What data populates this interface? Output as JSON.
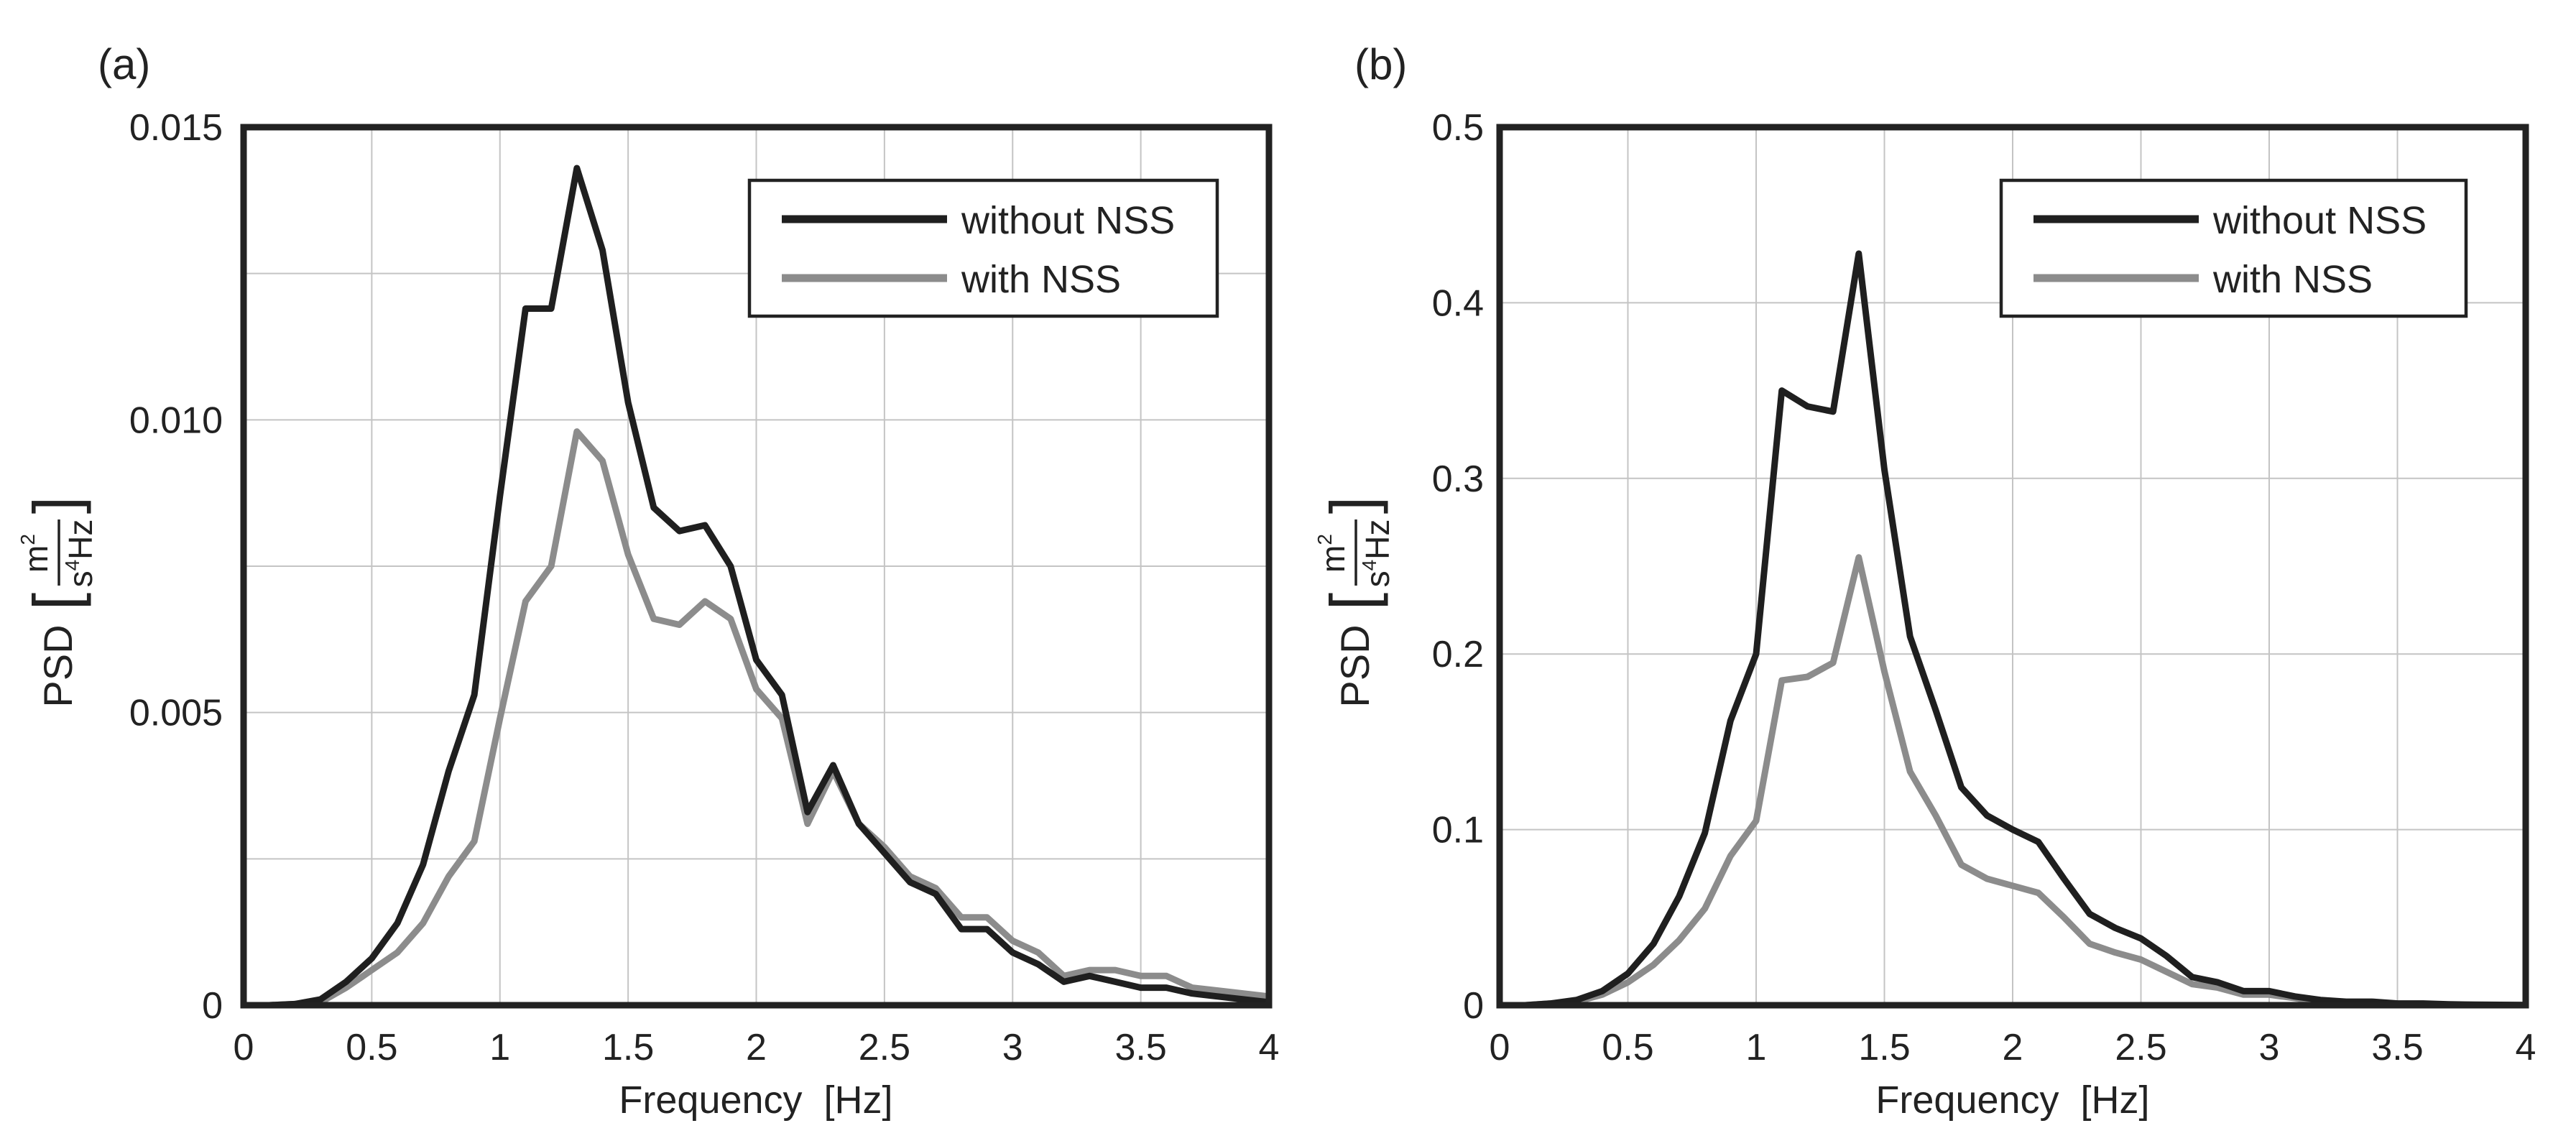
{
  "colors": {
    "without_nss": "#1f1f1f",
    "with_nss": "#8c8c8c",
    "grid": "#c4c4c4",
    "frame": "#222222",
    "background": "#ffffff"
  },
  "chart_data": [
    {
      "type": "line",
      "panel_label": "(a)",
      "title": "",
      "xlabel": "Frequency  [Hz]",
      "ylabel_prefix": "PSD",
      "unit_numerator": "m",
      "unit_numerator_exp": "2",
      "unit_denominator": "s",
      "unit_denominator_exp": "4",
      "unit_denominator_tail": "Hz",
      "xlim": [
        0,
        4
      ],
      "ylim": [
        0,
        0.015
      ],
      "xticks": [
        0,
        0.5,
        1,
        1.5,
        2,
        2.5,
        3,
        3.5,
        4
      ],
      "xtick_labels": [
        "0",
        "0.5",
        "1",
        "1.5",
        "2",
        "2.5",
        "3",
        "3.5",
        "4"
      ],
      "yticks": [
        0,
        0.005,
        0.01,
        0.015
      ],
      "ytick_labels": [
        "0",
        "0.005",
        "0.010",
        "0.015"
      ],
      "x_grid_step": 0.5,
      "y_grid_step": 0.0025,
      "grid": true,
      "legend_position": "top-right",
      "x": [
        0,
        0.1,
        0.2,
        0.3,
        0.4,
        0.5,
        0.6,
        0.7,
        0.8,
        0.9,
        1.0,
        1.1,
        1.2,
        1.3,
        1.4,
        1.5,
        1.6,
        1.7,
        1.8,
        1.9,
        2.0,
        2.1,
        2.2,
        2.3,
        2.4,
        2.5,
        2.6,
        2.7,
        2.8,
        2.9,
        3.0,
        3.1,
        3.2,
        3.3,
        3.4,
        3.5,
        3.6,
        3.7,
        3.8,
        3.9,
        4.0
      ],
      "series": [
        {
          "name": "without NSS",
          "values": [
            0.0,
            0.0,
            2e-05,
            0.0001,
            0.0004,
            0.0008,
            0.0014,
            0.0024,
            0.004,
            0.0053,
            0.0087,
            0.0119,
            0.0119,
            0.0143,
            0.0129,
            0.0103,
            0.0085,
            0.0081,
            0.0082,
            0.0075,
            0.0059,
            0.0053,
            0.0033,
            0.0041,
            0.0031,
            0.0026,
            0.0021,
            0.0019,
            0.0013,
            0.0013,
            0.0009,
            0.0007,
            0.0004,
            0.0005,
            0.0004,
            0.0003,
            0.0003,
            0.0002,
            0.00015,
            0.0001,
            5e-05
          ]
        },
        {
          "name": "with NSS",
          "values": [
            0.0,
            0.0,
            2e-05,
            5e-05,
            0.0003,
            0.0006,
            0.0009,
            0.0014,
            0.0022,
            0.0028,
            0.0049,
            0.0069,
            0.0075,
            0.0098,
            0.0093,
            0.0077,
            0.0066,
            0.0065,
            0.0069,
            0.0066,
            0.0054,
            0.0049,
            0.0031,
            0.004,
            0.0031,
            0.0027,
            0.0022,
            0.002,
            0.0015,
            0.0015,
            0.0011,
            0.0009,
            0.0005,
            0.0006,
            0.0006,
            0.0005,
            0.0005,
            0.0003,
            0.00025,
            0.0002,
            0.00015
          ]
        }
      ]
    },
    {
      "type": "line",
      "panel_label": "(b)",
      "title": "",
      "xlabel": "Frequency  [Hz]",
      "ylabel_prefix": "PSD",
      "unit_numerator": "m",
      "unit_numerator_exp": "2",
      "unit_denominator": "s",
      "unit_denominator_exp": "4",
      "unit_denominator_tail": "Hz",
      "xlim": [
        0,
        4
      ],
      "ylim": [
        0,
        0.5
      ],
      "xticks": [
        0,
        0.5,
        1,
        1.5,
        2,
        2.5,
        3,
        3.5,
        4
      ],
      "xtick_labels": [
        "0",
        "0.5",
        "1",
        "1.5",
        "2",
        "2.5",
        "3",
        "3.5",
        "4"
      ],
      "yticks": [
        0,
        0.1,
        0.2,
        0.3,
        0.4,
        0.5
      ],
      "ytick_labels": [
        "0",
        "0.1",
        "0.2",
        "0.3",
        "0.4",
        "0.5"
      ],
      "x_grid_step": 0.5,
      "y_grid_step": 0.1,
      "grid": true,
      "legend_position": "top-right",
      "x": [
        0,
        0.1,
        0.2,
        0.3,
        0.4,
        0.5,
        0.6,
        0.7,
        0.8,
        0.9,
        1.0,
        1.1,
        1.2,
        1.3,
        1.4,
        1.5,
        1.6,
        1.7,
        1.8,
        1.9,
        2.0,
        2.1,
        2.2,
        2.3,
        2.4,
        2.5,
        2.6,
        2.7,
        2.8,
        2.9,
        3.0,
        3.1,
        3.2,
        3.3,
        3.4,
        3.5,
        3.6,
        3.7,
        3.8,
        3.9,
        4.0
      ],
      "series": [
        {
          "name": "without NSS",
          "values": [
            0.0,
            0.0,
            0.001,
            0.003,
            0.008,
            0.018,
            0.035,
            0.062,
            0.098,
            0.162,
            0.2,
            0.35,
            0.341,
            0.338,
            0.428,
            0.305,
            0.21,
            0.168,
            0.124,
            0.108,
            0.1,
            0.093,
            0.072,
            0.052,
            0.044,
            0.038,
            0.028,
            0.016,
            0.013,
            0.008,
            0.008,
            0.005,
            0.003,
            0.002,
            0.002,
            0.001,
            0.001,
            0.0005,
            0.0003,
            0.0002,
            0.0001
          ]
        },
        {
          "name": "with NSS",
          "values": [
            0.0,
            0.0,
            0.001,
            0.002,
            0.006,
            0.013,
            0.023,
            0.037,
            0.055,
            0.085,
            0.105,
            0.185,
            0.187,
            0.195,
            0.255,
            0.19,
            0.133,
            0.108,
            0.08,
            0.072,
            0.068,
            0.064,
            0.05,
            0.035,
            0.03,
            0.026,
            0.019,
            0.012,
            0.01,
            0.006,
            0.006,
            0.004,
            0.002,
            0.0015,
            0.001,
            0.0008,
            0.0005,
            0.0003,
            0.0002,
            0.0001,
            0.0001
          ]
        }
      ]
    }
  ]
}
